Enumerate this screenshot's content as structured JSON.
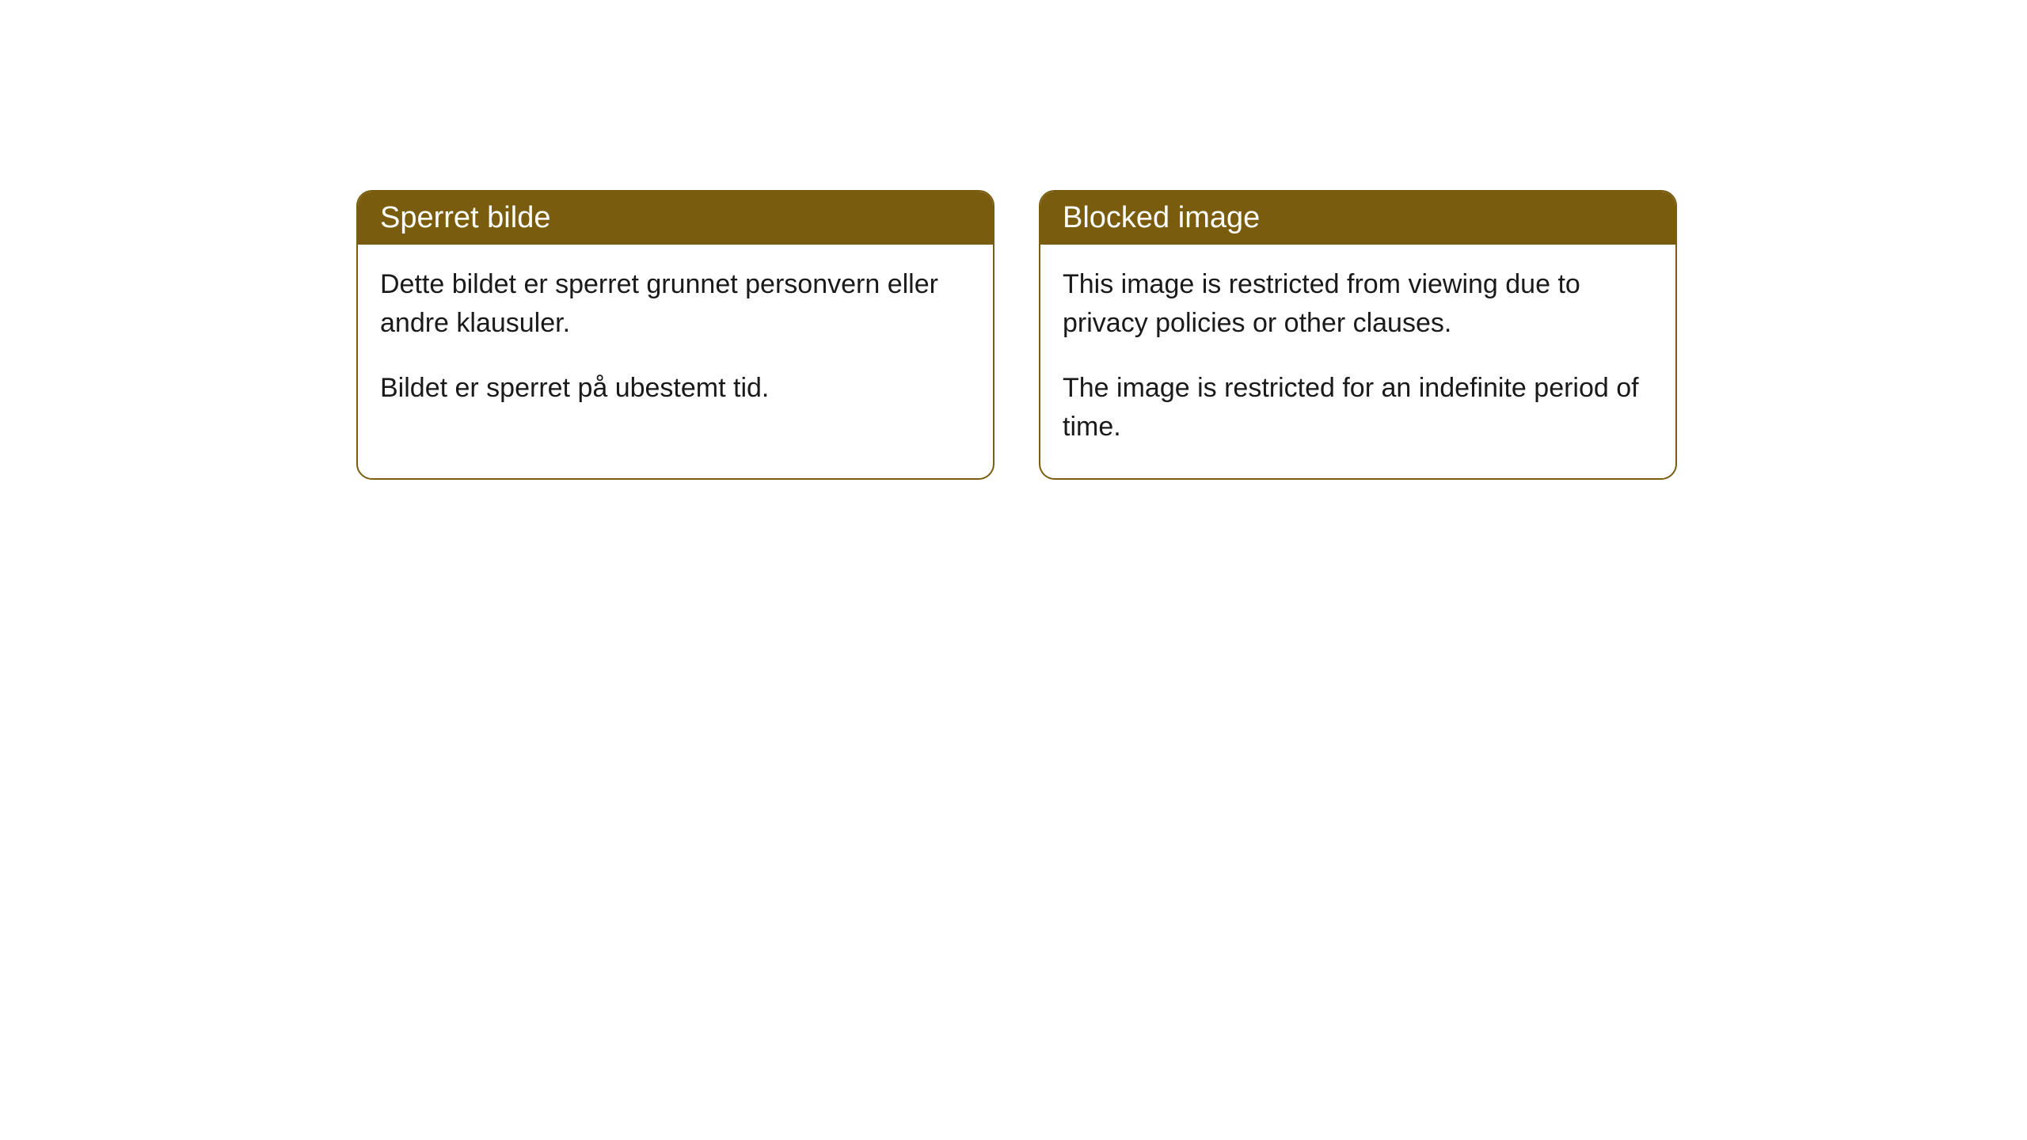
{
  "colors": {
    "header_bg": "#7a5c0f",
    "header_text": "#ffffff",
    "border": "#7a5c0f",
    "body_bg": "#ffffff",
    "body_text": "#1a1a1a"
  },
  "cards": [
    {
      "title": "Sperret bilde",
      "paragraph1": "Dette bildet er sperret grunnet personvern eller andre klausuler.",
      "paragraph2": "Bildet er sperret på ubestemt tid."
    },
    {
      "title": "Blocked image",
      "paragraph1": "This image is restricted from viewing due to privacy policies or other clauses.",
      "paragraph2": "The image is restricted for an indefinite period of time."
    }
  ]
}
